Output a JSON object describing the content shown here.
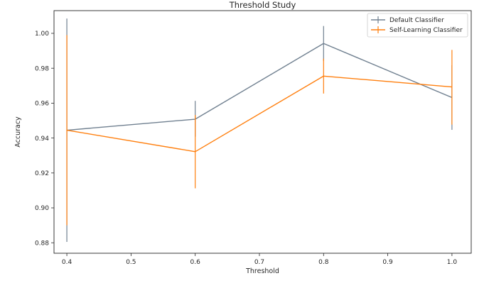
{
  "chart_data": {
    "type": "line",
    "title": "Threshold Study",
    "xlabel": "Threshold",
    "ylabel": "Accuracy",
    "x": [
      0.4,
      0.6,
      0.8,
      1.0
    ],
    "xlim": [
      0.38,
      1.03
    ],
    "ylim": [
      0.874,
      1.013
    ],
    "xticks": [
      0.4,
      0.5,
      0.6,
      0.7,
      0.8,
      0.9,
      1.0
    ],
    "xtick_labels": [
      "0.4",
      "0.5",
      "0.6",
      "0.7",
      "0.8",
      "0.9",
      "1.0"
    ],
    "yticks": [
      0.88,
      0.9,
      0.92,
      0.94,
      0.96,
      0.98,
      1.0
    ],
    "ytick_labels": [
      "0.88",
      "0.90",
      "0.92",
      "0.94",
      "0.96",
      "0.98",
      "1.00"
    ],
    "grid": false,
    "legend_position": "top-right",
    "series": [
      {
        "name": "Default Classifier",
        "color": "#708090",
        "values": [
          0.9445,
          0.9508,
          0.9942,
          0.9632
        ],
        "err_low": [
          0.8805,
          0.9408,
          0.9842,
          0.9447
        ],
        "err_high": [
          1.0085,
          0.9613,
          1.0042,
          0.9817
        ]
      },
      {
        "name": "Self-Learning Classifier",
        "color": "#ff7f0e",
        "values": [
          0.9445,
          0.9322,
          0.9755,
          0.9693
        ],
        "err_low": [
          0.89,
          0.9112,
          0.9655,
          0.9477
        ],
        "err_high": [
          0.999,
          0.9532,
          0.9855,
          0.9905
        ]
      }
    ]
  }
}
